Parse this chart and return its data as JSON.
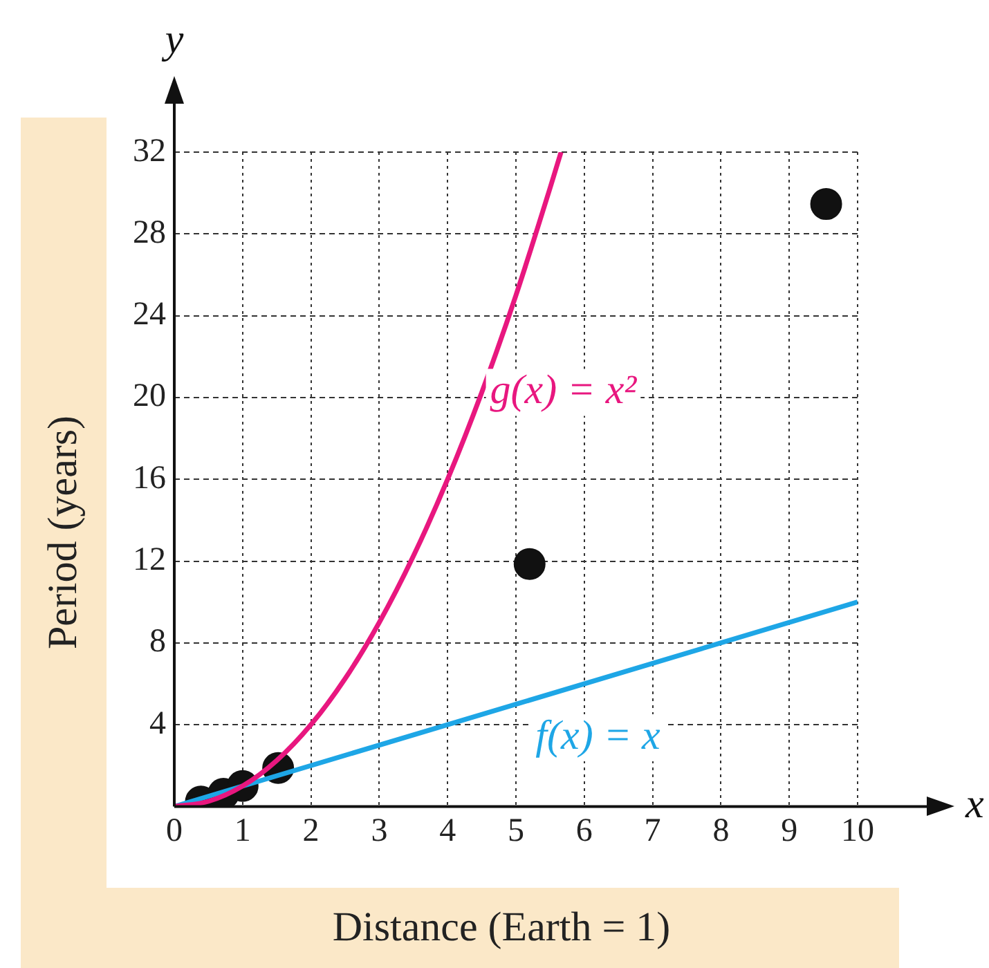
{
  "chart_data": {
    "type": "scatter",
    "xlabel": "Distance (Earth = 1)",
    "ylabel": "Period (years)",
    "annotations": [
      "y",
      "x"
    ],
    "xlim": [
      0,
      10
    ],
    "xticks": [
      0,
      1,
      2,
      3,
      4,
      5,
      6,
      7,
      8,
      9,
      10
    ],
    "ylim": [
      0,
      32
    ],
    "yticks": [
      4,
      8,
      12,
      16,
      20,
      24,
      28,
      32
    ],
    "grid": true,
    "legend": false,
    "marker": "circle",
    "series": [
      {
        "type": "line",
        "name": "g(x) = x²",
        "color": "#e8177f",
        "marker": "none",
        "x": [
          0,
          0.5,
          1,
          1.5,
          2,
          2.5,
          3,
          3.5,
          4,
          4.5,
          5,
          5.5,
          5.66
        ],
        "values": [
          0,
          0.25,
          1,
          2.25,
          4,
          6.25,
          9,
          12.25,
          16,
          20.25,
          25,
          30.25,
          32
        ]
      },
      {
        "type": "line",
        "name": "f(x) = x",
        "color": "#1ea6e6",
        "marker": "none",
        "x": [
          0,
          10
        ],
        "values": [
          0,
          10
        ]
      },
      {
        "type": "scatter",
        "color": "#111111",
        "x": [
          0.39,
          0.72,
          1,
          1.52,
          5.2,
          9.54
        ],
        "values": [
          0.24,
          0.62,
          1,
          1.88,
          11.86,
          29.46
        ]
      }
    ]
  }
}
